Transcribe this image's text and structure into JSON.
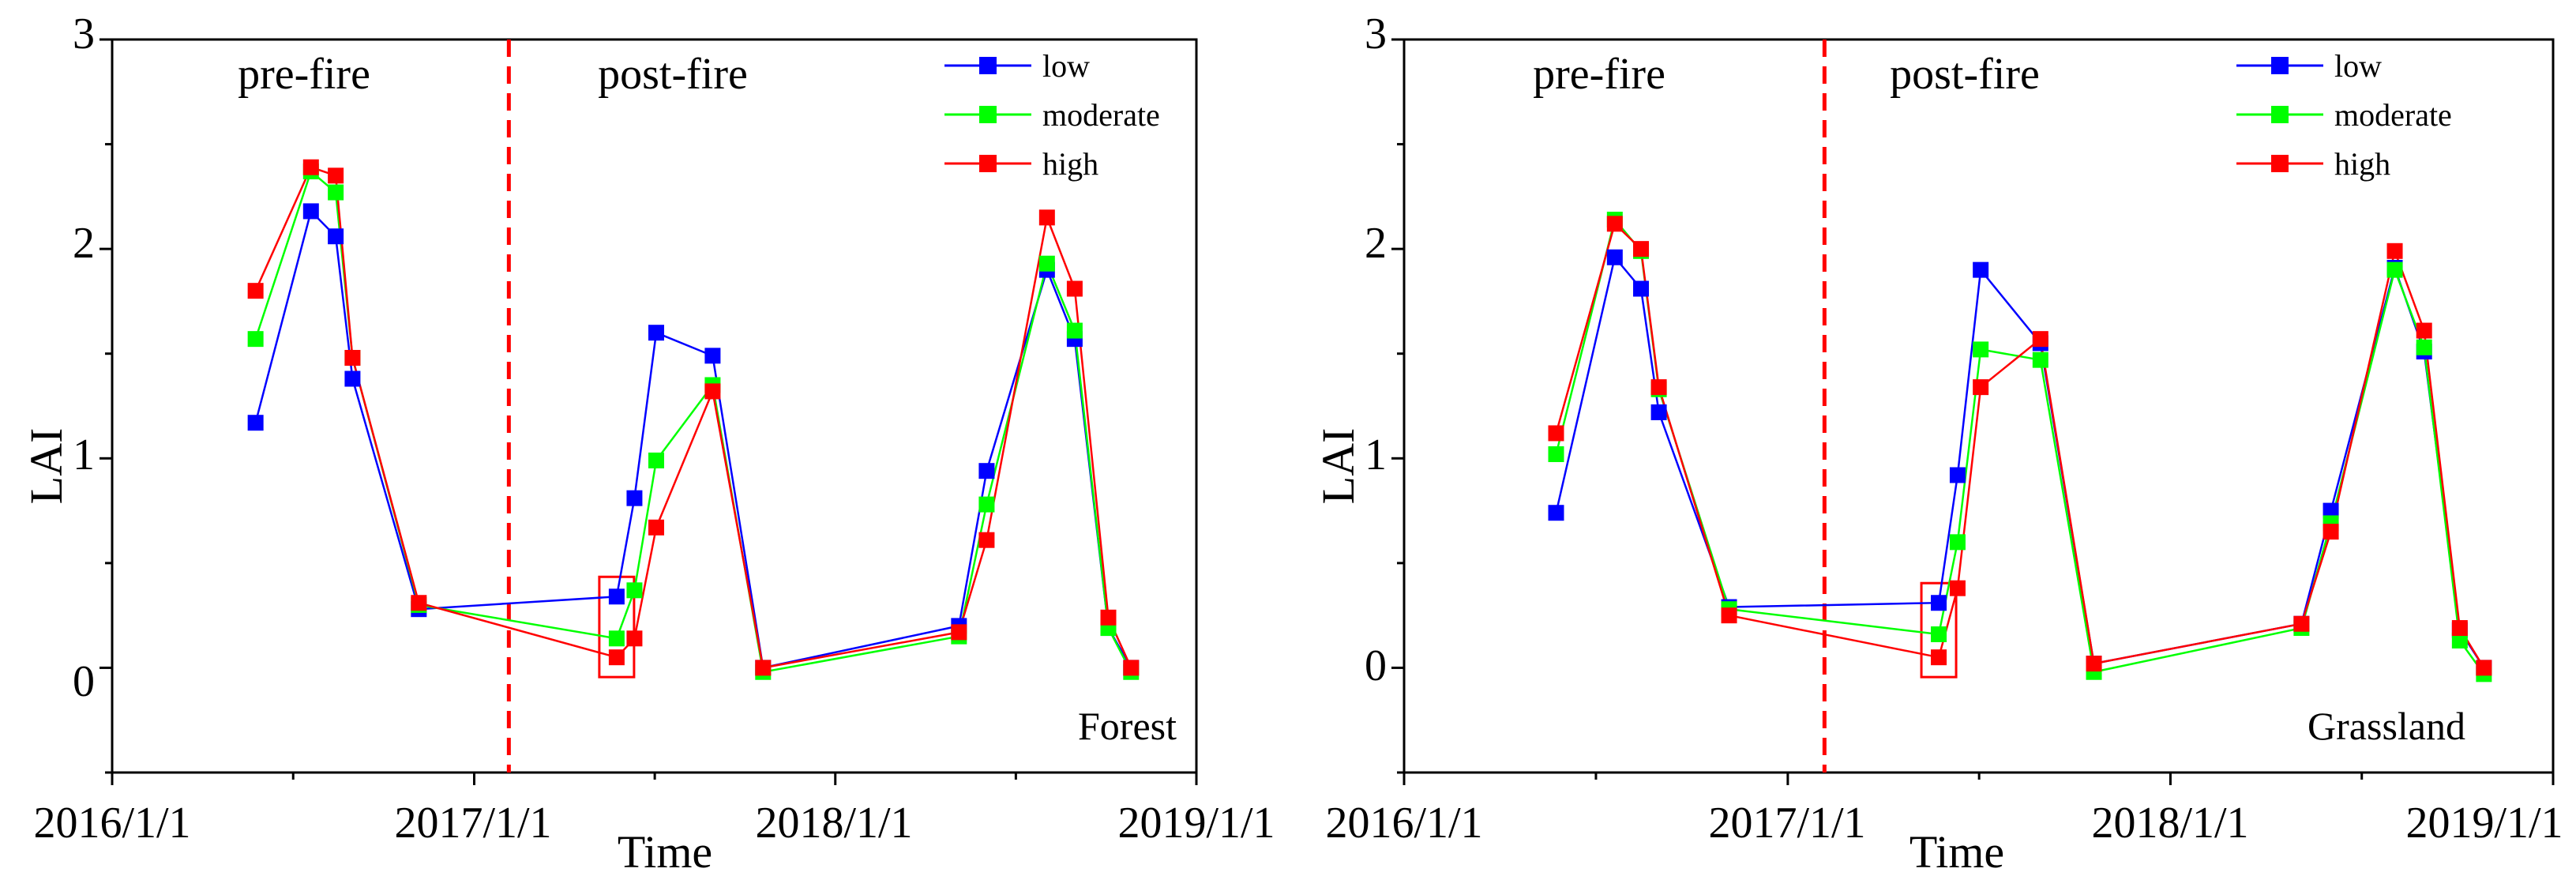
{
  "chart_data": [
    {
      "type": "line",
      "panel": "Forest",
      "xlabel": "Time",
      "ylabel": "LAI",
      "xlim": [
        "2016-01-01",
        "2019-01-01"
      ],
      "ylim": [
        -0.5,
        3
      ],
      "x_ticks": [
        {
          "date": "2016-01-01",
          "label": "2016/1/1"
        },
        {
          "date": "2017-01-01",
          "label": "2017/1/1"
        },
        {
          "date": "2018-01-01",
          "label": "2018/1/1"
        },
        {
          "date": "2019-01-01",
          "label": "2019/1/1"
        }
      ],
      "y_ticks": [
        {
          "value": 0,
          "label": "0"
        },
        {
          "value": 1,
          "label": "1"
        },
        {
          "value": 2,
          "label": "2"
        },
        {
          "value": 3,
          "label": "3"
        }
      ],
      "phase_labels": [
        "pre-fire",
        "post-fire"
      ],
      "fire_date": "2017-02-05",
      "highlight_date": "2017-05-25",
      "series": [
        {
          "name": "low",
          "color": "#0000ff",
          "x": [
            "2016-05-25",
            "2016-07-20",
            "2016-08-14",
            "2016-08-31",
            "2016-11-06",
            "2017-05-25",
            "2017-06-12",
            "2017-07-04",
            "2017-08-30",
            "2017-10-20",
            "2018-05-06",
            "2018-06-03",
            "2018-08-03",
            "2018-08-31",
            "2018-10-04",
            "2018-10-27"
          ],
          "values": [
            1.17,
            2.18,
            2.06,
            1.38,
            0.28,
            0.34,
            0.81,
            1.6,
            1.49,
            0.0,
            0.2,
            0.94,
            1.9,
            1.57,
            0.19,
            0.0
          ]
        },
        {
          "name": "moderate",
          "color": "#00ff00",
          "x": [
            "2016-05-25",
            "2016-07-20",
            "2016-08-14",
            "2016-08-31",
            "2016-11-06",
            "2017-05-25",
            "2017-06-12",
            "2017-07-04",
            "2017-08-30",
            "2017-10-20",
            "2018-05-06",
            "2018-06-03",
            "2018-08-03",
            "2018-08-31",
            "2018-10-04",
            "2018-10-27"
          ],
          "values": [
            1.57,
            2.37,
            2.27,
            1.48,
            0.3,
            0.14,
            0.37,
            0.99,
            1.35,
            -0.02,
            0.15,
            0.78,
            1.93,
            1.61,
            0.19,
            -0.02
          ]
        },
        {
          "name": "high",
          "color": "#ff0000",
          "x": [
            "2016-05-25",
            "2016-07-20",
            "2016-08-14",
            "2016-08-31",
            "2016-11-06",
            "2017-05-25",
            "2017-06-12",
            "2017-07-04",
            "2017-08-30",
            "2017-10-20",
            "2018-05-06",
            "2018-06-03",
            "2018-08-03",
            "2018-08-31",
            "2018-10-04",
            "2018-10-27"
          ],
          "values": [
            1.8,
            2.39,
            2.35,
            1.48,
            0.31,
            0.05,
            0.14,
            0.67,
            1.32,
            0.0,
            0.17,
            0.61,
            2.15,
            1.81,
            0.24,
            0.0
          ]
        }
      ]
    },
    {
      "type": "line",
      "panel": "Grassland",
      "xlabel": "Time",
      "ylabel": "LAI",
      "xlim": [
        "2016-01-01",
        "2019-01-01"
      ],
      "ylim": [
        -0.5,
        3
      ],
      "x_ticks": [
        {
          "date": "2016-01-01",
          "label": "2016/1/1"
        },
        {
          "date": "2017-01-01",
          "label": "2017/1/1"
        },
        {
          "date": "2018-01-01",
          "label": "2018/1/1"
        },
        {
          "date": "2019-01-01",
          "label": "2019/1/1"
        }
      ],
      "y_ticks": [
        {
          "value": 0,
          "label": "0"
        },
        {
          "value": 1,
          "label": "1"
        },
        {
          "value": 2,
          "label": "2"
        },
        {
          "value": 3,
          "label": "3"
        }
      ],
      "phase_labels": [
        "pre-fire",
        "post-fire"
      ],
      "fire_date": "2017-02-05",
      "highlight_date": "2017-05-25",
      "series": [
        {
          "name": "low",
          "color": "#0000ff",
          "x": [
            "2016-05-25",
            "2016-07-20",
            "2016-08-14",
            "2016-08-31",
            "2016-11-06",
            "2017-05-25",
            "2017-06-12",
            "2017-07-04",
            "2017-08-30",
            "2017-10-20",
            "2018-05-06",
            "2018-06-03",
            "2018-08-03",
            "2018-08-31",
            "2018-10-04",
            "2018-10-27"
          ],
          "values": [
            0.74,
            1.96,
            1.81,
            1.22,
            0.29,
            0.31,
            0.92,
            1.9,
            1.55,
            0.02,
            0.21,
            0.75,
            1.91,
            1.51,
            0.18,
            0.0
          ]
        },
        {
          "name": "moderate",
          "color": "#00ff00",
          "x": [
            "2016-05-25",
            "2016-07-20",
            "2016-08-14",
            "2016-08-31",
            "2016-11-06",
            "2017-05-25",
            "2017-06-12",
            "2017-07-04",
            "2017-08-30",
            "2017-10-20",
            "2018-05-06",
            "2018-06-03",
            "2018-08-03",
            "2018-08-31",
            "2018-10-04",
            "2018-10-27"
          ],
          "values": [
            1.02,
            2.14,
            1.99,
            1.33,
            0.28,
            0.16,
            0.6,
            1.52,
            1.47,
            -0.02,
            0.19,
            0.69,
            1.9,
            1.53,
            0.13,
            -0.03
          ]
        },
        {
          "name": "high",
          "color": "#ff0000",
          "x": [
            "2016-05-25",
            "2016-07-20",
            "2016-08-14",
            "2016-08-31",
            "2016-11-06",
            "2017-05-25",
            "2017-06-12",
            "2017-07-04",
            "2017-08-30",
            "2017-10-20",
            "2018-05-06",
            "2018-06-03",
            "2018-08-03",
            "2018-08-31",
            "2018-10-04",
            "2018-10-27"
          ],
          "values": [
            1.12,
            2.12,
            2.0,
            1.34,
            0.25,
            0.05,
            0.38,
            1.34,
            1.57,
            0.02,
            0.21,
            0.65,
            1.99,
            1.61,
            0.19,
            0.0
          ]
        }
      ]
    }
  ]
}
